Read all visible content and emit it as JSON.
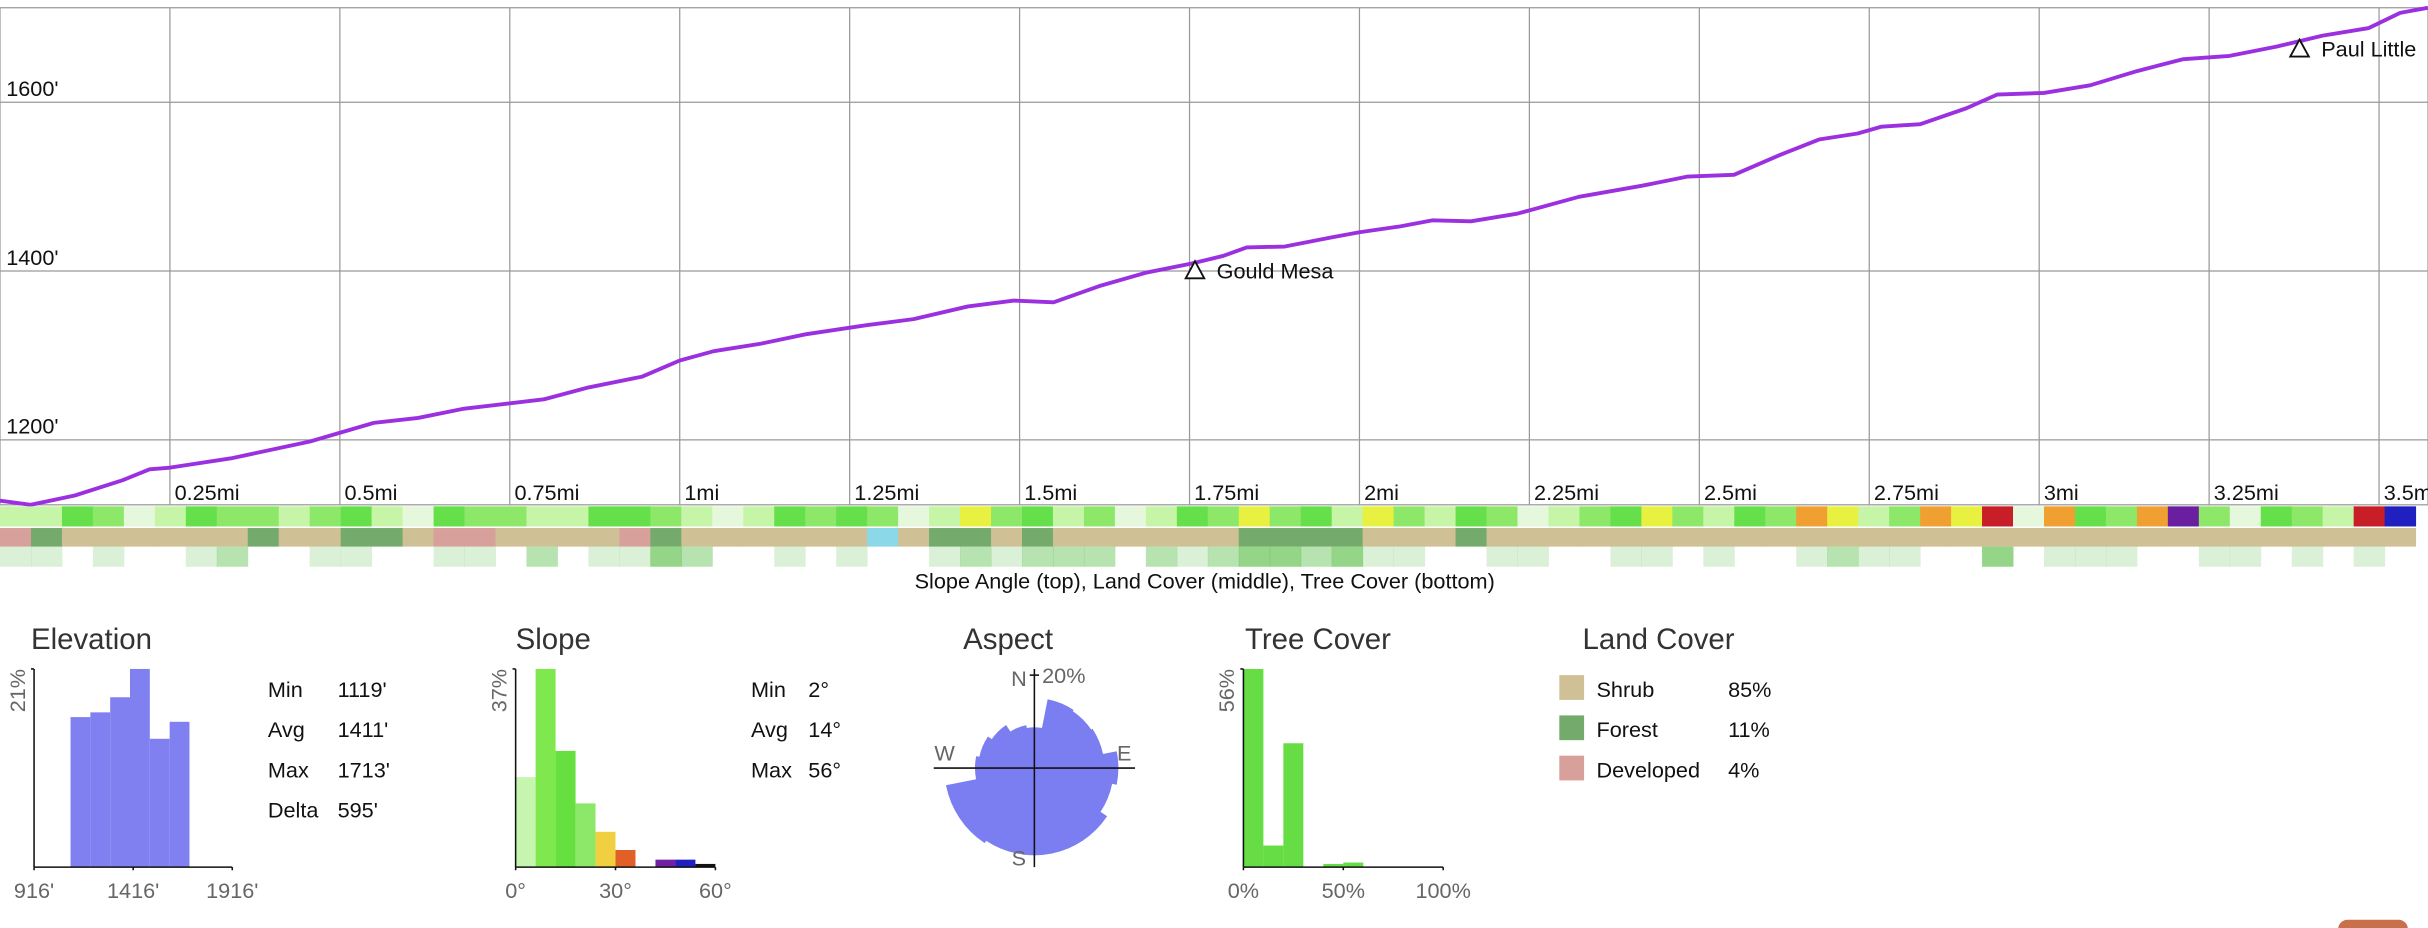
{
  "chart_data": [
    {
      "type": "line",
      "color": "#9b30e0",
      "x": [
        0,
        0.045,
        0.11,
        0.18,
        0.22,
        0.25,
        0.34,
        0.456,
        0.55,
        0.615,
        0.683,
        0.8,
        0.866,
        0.945,
        1.0,
        1.05,
        1.12,
        1.185,
        1.276,
        1.344,
        1.424,
        1.492,
        1.55,
        1.617,
        1.686,
        1.754,
        1.8,
        1.834,
        1.89,
        1.96,
        2.0,
        2.06,
        2.107,
        2.164,
        2.232,
        2.323,
        2.415,
        2.483,
        2.551,
        2.62,
        2.677,
        2.733,
        2.768,
        2.825,
        2.893,
        2.938,
        3.007,
        3.075,
        3.144,
        3.212,
        3.28,
        3.349,
        3.417,
        3.485,
        3.531,
        3.572
      ],
      "values": [
        1128,
        1123,
        1134,
        1152,
        1165,
        1167,
        1178,
        1198,
        1220,
        1226,
        1237,
        1248,
        1262,
        1275,
        1294,
        1305,
        1314,
        1325,
        1336,
        1343,
        1358,
        1365,
        1363,
        1382,
        1398,
        1409,
        1418,
        1428,
        1429,
        1440,
        1446,
        1453,
        1460,
        1459,
        1468,
        1488,
        1501,
        1512,
        1514,
        1538,
        1556,
        1563,
        1571,
        1574,
        1593,
        1609,
        1611,
        1620,
        1637,
        1651,
        1655,
        1666,
        1679,
        1688,
        1706,
        1712
      ],
      "xlim": [
        0,
        3.572
      ],
      "ylim": [
        1123,
        1712
      ],
      "xticks": [
        {
          "value": 0.25,
          "label": "0.25mi"
        },
        {
          "value": 0.5,
          "label": "0.5mi"
        },
        {
          "value": 0.75,
          "label": "0.75mi"
        },
        {
          "value": 1,
          "label": "1mi"
        },
        {
          "value": 1.25,
          "label": "1.25mi"
        },
        {
          "value": 1.5,
          "label": "1.5mi"
        },
        {
          "value": 1.75,
          "label": "1.75mi"
        },
        {
          "value": 2,
          "label": "2mi"
        },
        {
          "value": 2.25,
          "label": "2.25mi"
        },
        {
          "value": 2.5,
          "label": "2.5mi"
        },
        {
          "value": 2.75,
          "label": "2.75mi"
        },
        {
          "value": 3,
          "label": "3mi"
        },
        {
          "value": 3.25,
          "label": "3.25mi"
        },
        {
          "value": 3.5,
          "label": "3.5mi"
        }
      ],
      "yticks": [
        {
          "value": 1200,
          "label": "1200'"
        },
        {
          "value": 1400,
          "label": "1400'"
        },
        {
          "value": 1600,
          "label": "1600'"
        }
      ],
      "grid": true,
      "annotations": [
        {
          "text": "Gould Mesa",
          "x": 1.758
        },
        {
          "text": "Paul Little",
          "x": 3.383
        }
      ]
    },
    {
      "type": "histogram",
      "title": "Elevation",
      "color": "#8080f0",
      "bins": [
        1100,
        1200,
        1300,
        1400,
        1500,
        1600,
        1700
      ],
      "values": [
        15.9,
        16.4,
        18.0,
        21,
        13.6,
        15.4
      ],
      "xlim": [
        916,
        1916
      ],
      "ylim": [
        0,
        21
      ],
      "xticks": [
        {
          "value": 916,
          "label": "916'"
        },
        {
          "value": 1416,
          "label": "1416'"
        },
        {
          "value": 1916,
          "label": "1916'"
        }
      ],
      "yticks": [
        {
          "value": 21,
          "label": "21%"
        }
      ],
      "stats": [
        {
          "label": "Min",
          "value": "1119'"
        },
        {
          "label": "Avg",
          "value": "1411'"
        },
        {
          "label": "Max",
          "value": "1713'"
        },
        {
          "label": "Delta",
          "value": "595'"
        }
      ]
    },
    {
      "type": "histogram",
      "title": "Slope",
      "colors": [
        "#c6f5b0",
        "#7ee84e",
        "#66e040",
        "#8de86a",
        "#f0d040",
        "#e06028",
        "#d02020",
        "#7020a0",
        "#2020c0",
        "#111111"
      ],
      "bins": [
        0,
        6,
        12,
        18,
        24,
        30,
        36,
        42,
        48,
        54,
        60
      ],
      "values": [
        16.8,
        37,
        21.7,
        11.9,
        6.6,
        3.2,
        0,
        1.4,
        1.4,
        0.6
      ],
      "xlim": [
        0,
        60
      ],
      "ylim": [
        0,
        37
      ],
      "xticks": [
        {
          "value": 0,
          "label": "0°"
        },
        {
          "value": 30,
          "label": "30°"
        },
        {
          "value": 60,
          "label": "60°"
        }
      ],
      "yticks": [
        {
          "value": 37,
          "label": "37%"
        }
      ],
      "stats": [
        {
          "label": "Min",
          "value": "2°"
        },
        {
          "label": "Avg",
          "value": "14°"
        },
        {
          "label": "Max",
          "value": "56°"
        }
      ]
    },
    {
      "type": "polar",
      "title": "Aspect",
      "color": "#7b7ef0",
      "categories": [
        "N",
        null,
        null,
        null,
        "E",
        null,
        null,
        null,
        "S",
        null,
        null,
        null,
        "W",
        null,
        null,
        null
      ],
      "values": [
        8.7,
        15,
        14.7,
        15,
        18,
        17,
        18.7,
        18.7,
        18.7,
        18.7,
        19.3,
        19.3,
        12.7,
        12,
        11,
        9.3
      ],
      "rlim": [
        0,
        20
      ],
      "rticks": [
        {
          "value": 20,
          "label": "20%"
        }
      ]
    },
    {
      "type": "histogram",
      "title": "Tree Cover",
      "color": "#66dd44",
      "bins": [
        0,
        10,
        20,
        30,
        40,
        50,
        60,
        70,
        80,
        90,
        100
      ],
      "values": [
        56,
        6.1,
        35,
        0,
        0.9,
        1.3,
        0,
        0,
        0,
        0
      ],
      "xlim": [
        0,
        100
      ],
      "ylim": [
        0,
        56
      ],
      "xticks": [
        {
          "value": 0,
          "label": "0%"
        },
        {
          "value": 50,
          "label": "50%"
        },
        {
          "value": 100,
          "label": "100%"
        }
      ],
      "yticks": [
        {
          "value": 56,
          "label": "56%"
        }
      ]
    }
  ],
  "strips": {
    "caption": "Slope Angle (top), Land Cover (middle), Tree Cover (bottom)",
    "slope_palette": {
      "w": "#e6f8dc",
      "l": "#c6f5a8",
      "g": "#8de86a",
      "h": "#66e04a",
      "y": "#e8f040",
      "o": "#f0a030",
      "r": "#c81e28",
      "p": "#6a1fa0",
      "b": "#2020c0"
    },
    "slope": [
      "l",
      "l",
      "h",
      "g",
      "w",
      "l",
      "h",
      "g",
      "g",
      "l",
      "g",
      "h",
      "l",
      "w",
      "h",
      "g",
      "g",
      "l",
      "l",
      "h",
      "h",
      "g",
      "l",
      "w",
      "l",
      "h",
      "g",
      "h",
      "g",
      "w",
      "l",
      "y",
      "g",
      "h",
      "l",
      "g",
      "w",
      "l",
      "h",
      "g",
      "y",
      "g",
      "h",
      "l",
      "y",
      "g",
      "l",
      "h",
      "g",
      "w",
      "l",
      "g",
      "h",
      "y",
      "g",
      "l",
      "h",
      "g",
      "o",
      "y",
      "l",
      "g",
      "o",
      "y",
      "r",
      "w",
      "o",
      "h",
      "g",
      "o",
      "p",
      "g",
      "w",
      "h",
      "g",
      "l",
      "r",
      "b"
    ],
    "land_palette": {
      "s": "#cfc095",
      "f": "#74ab6c",
      "d": "#d8a09a",
      "c": "#8ad8e8"
    },
    "land": [
      "d",
      "f",
      "s",
      "s",
      "s",
      "s",
      "s",
      "s",
      "f",
      "s",
      "s",
      "f",
      "f",
      "s",
      "d",
      "d",
      "s",
      "s",
      "s",
      "s",
      "d",
      "f",
      "s",
      "s",
      "s",
      "s",
      "s",
      "s",
      "c",
      "s",
      "f",
      "f",
      "s",
      "f",
      "s",
      "s",
      "s",
      "s",
      "s",
      "s",
      "f",
      "f",
      "f",
      "f",
      "s",
      "s",
      "s",
      "f",
      "s",
      "s",
      "s",
      "s",
      "s",
      "s",
      "s",
      "s",
      "s",
      "s",
      "s",
      "s",
      "s",
      "s",
      "s",
      "s",
      "s",
      "s",
      "s",
      "s",
      "s",
      "s",
      "s",
      "s",
      "s",
      "s",
      "s",
      "s",
      "s",
      "s"
    ],
    "tree_color": "#5cc04a",
    "tree": [
      1,
      1,
      0,
      1,
      0,
      0,
      1,
      2,
      0,
      0,
      1,
      1,
      0,
      0,
      1,
      1,
      0,
      2,
      0,
      1,
      1,
      3,
      2,
      0,
      0,
      1,
      0,
      1,
      0,
      0,
      1,
      2,
      1,
      2,
      2,
      2,
      0,
      2,
      1,
      2,
      3,
      3,
      2,
      3,
      1,
      1,
      0,
      0,
      1,
      1,
      0,
      0,
      1,
      1,
      0,
      1,
      0,
      0,
      1,
      2,
      1,
      1,
      0,
      0,
      3,
      0,
      1,
      1,
      1,
      0,
      0,
      1,
      1,
      0,
      1,
      0,
      1,
      0
    ]
  },
  "land_cover": {
    "title": "Land Cover",
    "items": [
      {
        "name": "Shrub",
        "color": "#cfc095",
        "percent": "85%"
      },
      {
        "name": "Forest",
        "color": "#74ab6c",
        "percent": "11%"
      },
      {
        "name": "Developed",
        "color": "#d8a09a",
        "percent": "4%"
      }
    ]
  }
}
